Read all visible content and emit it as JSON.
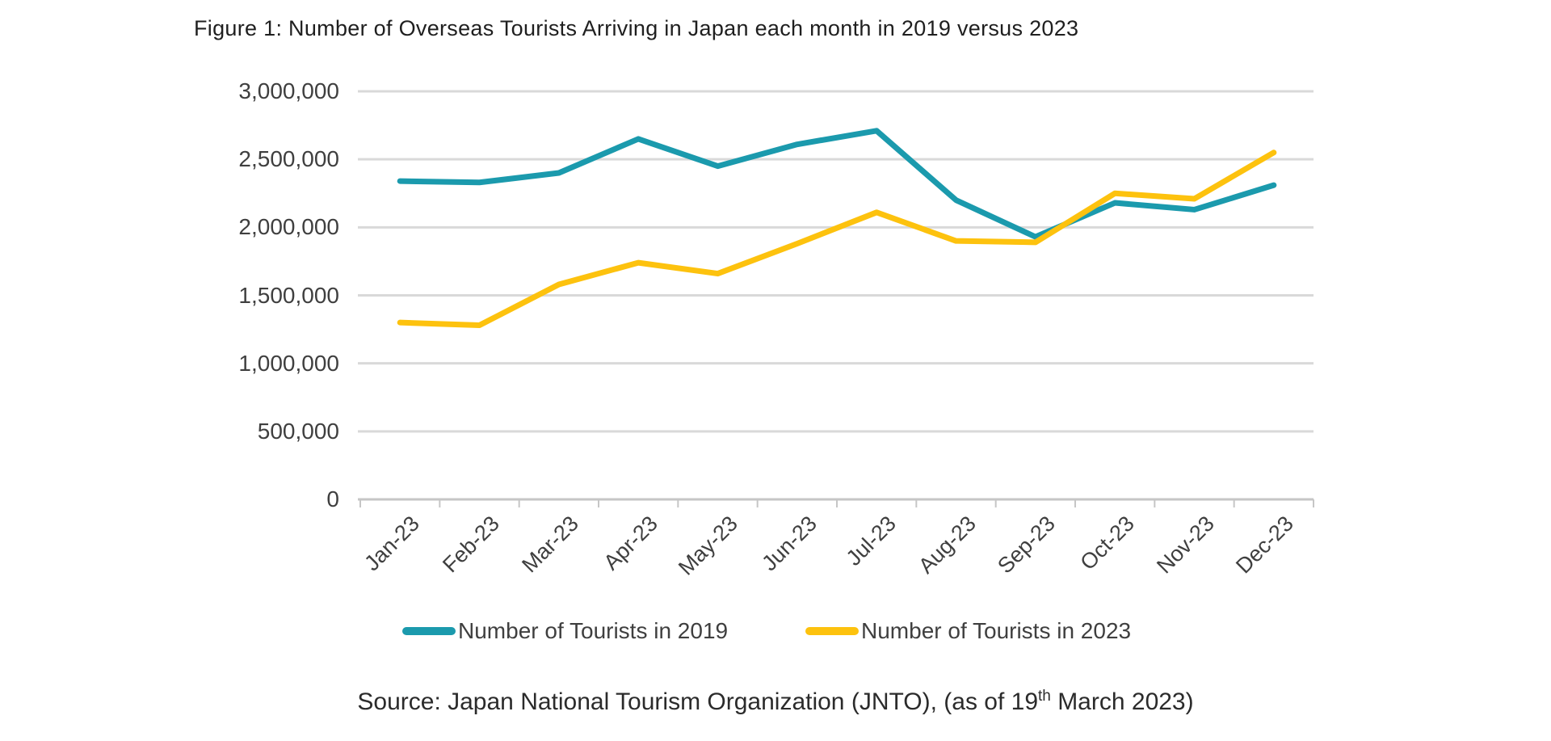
{
  "figure": {
    "title": "Figure 1: Number of Overseas Tourists Arriving in Japan each month in 2019 versus 2023",
    "source": {
      "prefix": "Source: Japan National Tourism Organization (JNTO), (as of 19",
      "superscript": "th",
      "suffix": " March 2023)"
    }
  },
  "chart_data": {
    "type": "line",
    "title": "Figure 1: Number of Overseas Tourists Arriving in Japan each month in 2019 versus 2023",
    "categories": [
      "Jan-23",
      "Feb-23",
      "Mar-23",
      "Apr-23",
      "May-23",
      "Jun-23",
      "Jul-23",
      "Aug-23",
      "Sep-23",
      "Oct-23",
      "Nov-23",
      "Dec-23"
    ],
    "series": [
      {
        "name": "Number of Tourists in 2019",
        "color": "#1B9AAD",
        "values": [
          2340000,
          2330000,
          2400000,
          2650000,
          2450000,
          2610000,
          2710000,
          2200000,
          1930000,
          2180000,
          2130000,
          2310000
        ]
      },
      {
        "name": "Number of Tourists in 2023",
        "color": "#FDC20E",
        "values": [
          1300000,
          1280000,
          1580000,
          1740000,
          1660000,
          1880000,
          2110000,
          1900000,
          1890000,
          2250000,
          2210000,
          2550000
        ]
      }
    ],
    "xlabel": "",
    "ylabel": "",
    "ylim": [
      0,
      3000000
    ],
    "ytick_step": 500000,
    "ytick_labels": [
      "0",
      "500,000",
      "1,000,000",
      "1,500,000",
      "2,000,000",
      "2,500,000",
      "3,000,000"
    ],
    "grid": true,
    "legend_position": "bottom",
    "gridline_color": "#D9D9D9",
    "axis_color": "#C6C6C6"
  }
}
